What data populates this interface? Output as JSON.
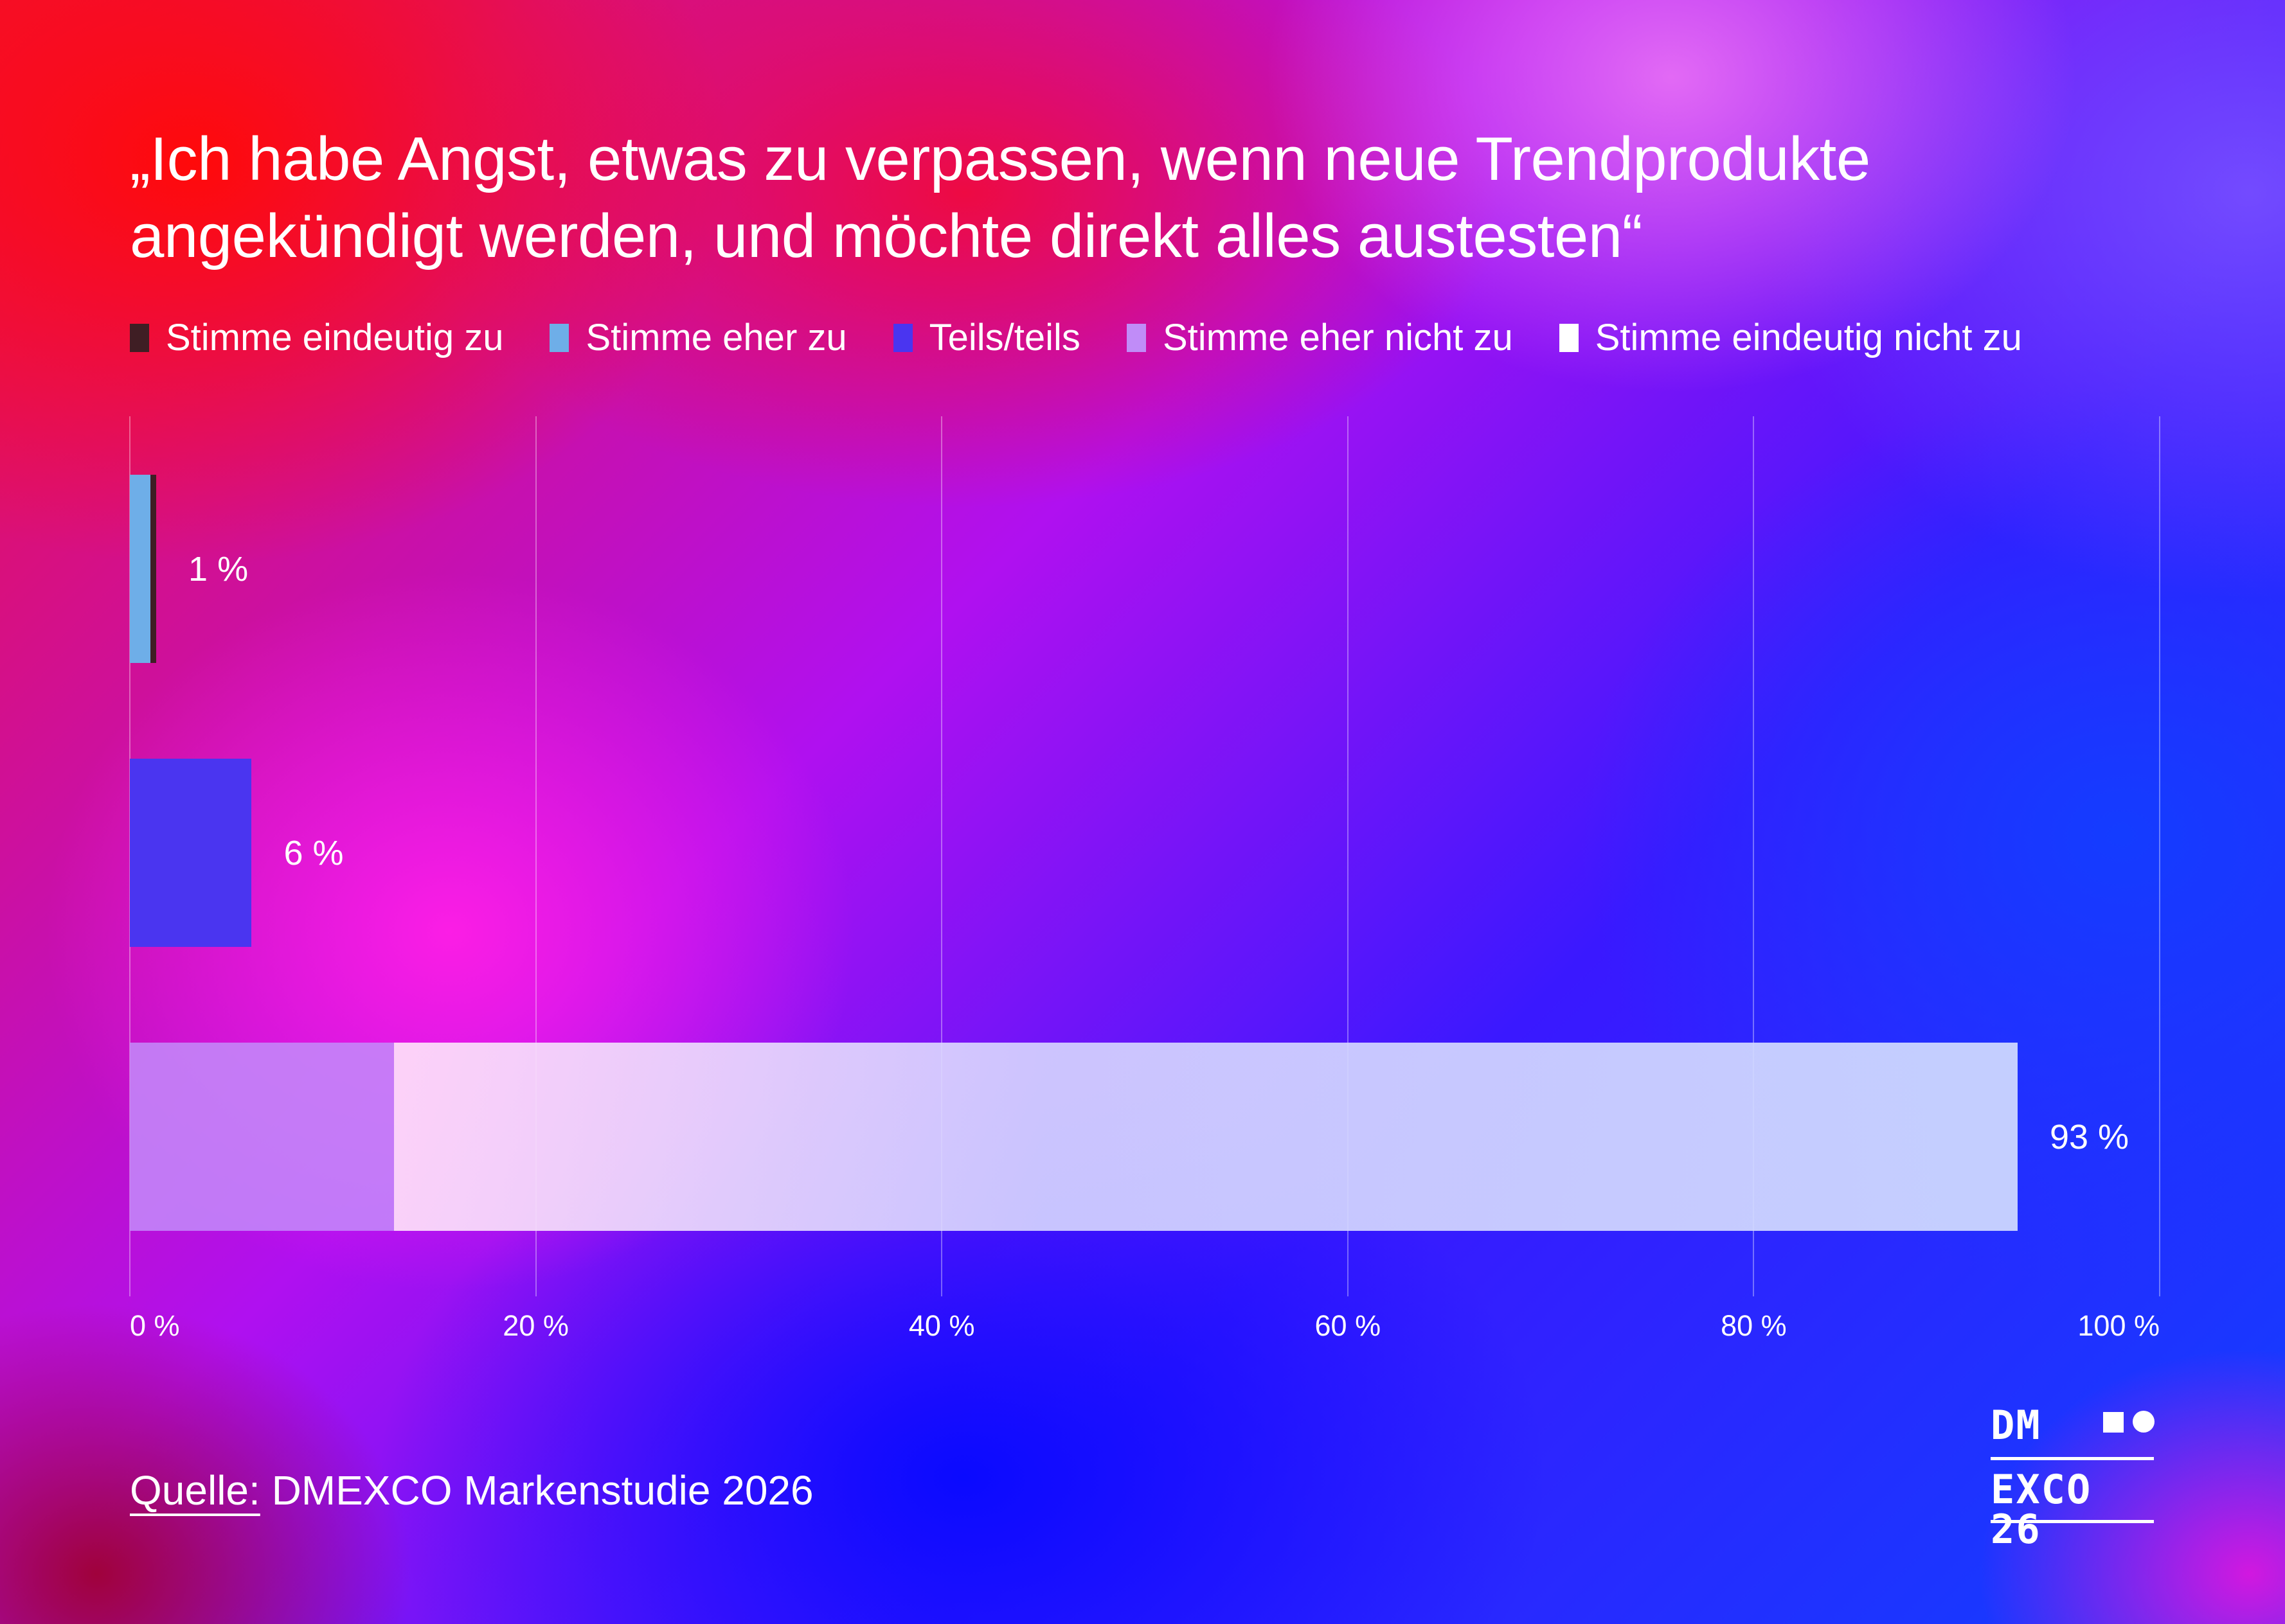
{
  "chart_data": {
    "type": "bar",
    "orientation": "horizontal",
    "stacked": true,
    "title": "„Ich habe Angst, etwas zu verpassen, wenn neue Trendprodukte angekündigt werden, und möchte direkt alles austesten“",
    "title_lines": [
      "„Ich habe Angst, etwas zu verpassen, wenn neue Trendprodukte",
      "angekündigt werden, und möchte direkt alles austesten“"
    ],
    "legend": [
      {
        "name": "Stimme eindeutig zu",
        "color": "#3f1e24"
      },
      {
        "name": "Stimme eher zu",
        "color": "#6eaee8"
      },
      {
        "name": "Teils/teils",
        "color": "#4a35f0"
      },
      {
        "name": "Stimme eher nicht zu",
        "color": "#c08cf8"
      },
      {
        "name": "Stimme eindeutig nicht zu",
        "color": "#ffffff"
      }
    ],
    "legend_placement": "top-left",
    "bars": [
      {
        "label": "1 %",
        "segments": [
          {
            "series": "Stimme eher zu",
            "value": 1.0
          },
          {
            "series": "Stimme eindeutig zu",
            "value": 0.3
          }
        ]
      },
      {
        "label": "6 %",
        "segments": [
          {
            "series": "Teils/teils",
            "value": 6
          }
        ]
      },
      {
        "label": "93 %",
        "segments": [
          {
            "series": "Stimme eher nicht zu",
            "value": 13
          },
          {
            "series": "Stimme eindeutig nicht zu",
            "value": 80
          }
        ]
      }
    ],
    "xlim": [
      0,
      100
    ],
    "xticks": [
      0,
      20,
      40,
      60,
      80,
      100
    ],
    "xtick_labels": [
      "0 %",
      "20 %",
      "40 %",
      "60 %",
      "80 %",
      "100 %"
    ],
    "grid": true
  },
  "source": {
    "label": "Quelle:",
    "text": " DMEXCO Markenstudie 2026"
  },
  "logo": {
    "line1": "DM",
    "line2": "EXCO 26"
  }
}
